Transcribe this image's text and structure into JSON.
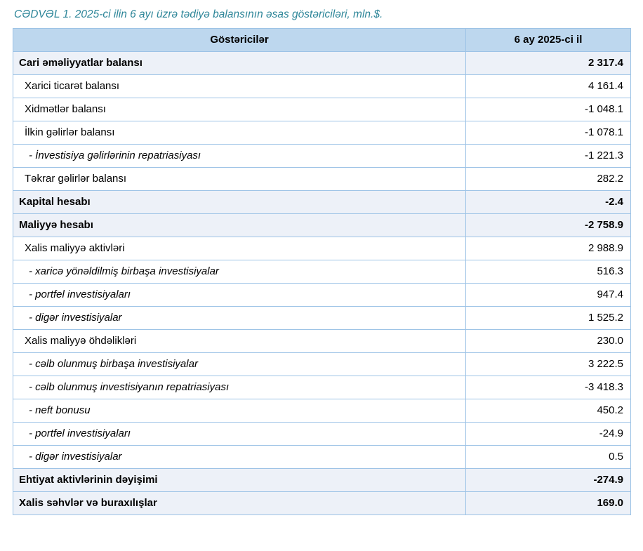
{
  "title": "CƏDVƏL 1. 2025-ci ilin 6 ayı üzrə tədiyə balansının əsas göstəriciləri, mln.$.",
  "colors": {
    "title_text": "#2E8699",
    "header_bg": "#BDD7EE",
    "shaded_row_bg": "#EDF1F8",
    "border": "#9DC3E6"
  },
  "table": {
    "headers": [
      "Göstəricilər",
      "6 ay 2025-ci il"
    ],
    "rows": [
      {
        "label": "Cari əməliyyatlar balansı",
        "value": "2 317.4",
        "bold": true,
        "italic": false,
        "indent": 0
      },
      {
        "label": "Xarici ticarət balansı",
        "value": "4 161.4",
        "bold": false,
        "italic": false,
        "indent": 1
      },
      {
        "label": "Xidmətlər balansı",
        "value": "-1 048.1",
        "bold": false,
        "italic": false,
        "indent": 1
      },
      {
        "label": "İlkin gəlirlər balansı",
        "value": "-1 078.1",
        "bold": false,
        "italic": false,
        "indent": 1
      },
      {
        "label": "- İnvestisiya gəlirlərinin repatriasiyası",
        "value": "-1 221.3",
        "bold": false,
        "italic": true,
        "indent": 2
      },
      {
        "label": "Təkrar gəlirlər balansı",
        "value": "282.2",
        "bold": false,
        "italic": false,
        "indent": 1
      },
      {
        "label": "Kapital hesabı",
        "value": "-2.4",
        "bold": true,
        "italic": false,
        "indent": 0
      },
      {
        "label": "Maliyyə hesabı",
        "value": "-2 758.9",
        "bold": true,
        "italic": false,
        "indent": 0
      },
      {
        "label": "Xalis maliyyə aktivləri",
        "value": "2 988.9",
        "bold": false,
        "italic": false,
        "indent": 1
      },
      {
        "label": "- xaricə yönəldilmiş birbaşa investisiyalar",
        "value": "516.3",
        "bold": false,
        "italic": true,
        "indent": 2
      },
      {
        "label": "- portfel investisiyaları",
        "value": "947.4",
        "bold": false,
        "italic": true,
        "indent": 2
      },
      {
        "label": "- digər investisiyalar",
        "value": "1 525.2",
        "bold": false,
        "italic": true,
        "indent": 2
      },
      {
        "label": "Xalis maliyyə öhdəlikləri",
        "value": "230.0",
        "bold": false,
        "italic": false,
        "indent": 1
      },
      {
        "label": "- cəlb olunmuş birbaşa investisiyalar",
        "value": "3 222.5",
        "bold": false,
        "italic": true,
        "indent": 2
      },
      {
        "label": "- cəlb olunmuş investisiyanın repatriasiyası",
        "value": "-3 418.3",
        "bold": false,
        "italic": true,
        "indent": 2
      },
      {
        "label": "- neft bonusu",
        "value": "450.2",
        "bold": false,
        "italic": true,
        "indent": 2
      },
      {
        "label": "- portfel investisiyaları",
        "value": "-24.9",
        "bold": false,
        "italic": true,
        "indent": 2
      },
      {
        "label": "- digər investisiyalar",
        "value": "0.5",
        "bold": false,
        "italic": true,
        "indent": 2
      },
      {
        "label": "Ehtiyat aktivlərinin dəyişimi",
        "value": "-274.9",
        "bold": true,
        "italic": false,
        "indent": 0
      },
      {
        "label": "Xalis səhvlər və buraxılışlar",
        "value": "169.0",
        "bold": true,
        "italic": false,
        "indent": 0
      }
    ]
  }
}
